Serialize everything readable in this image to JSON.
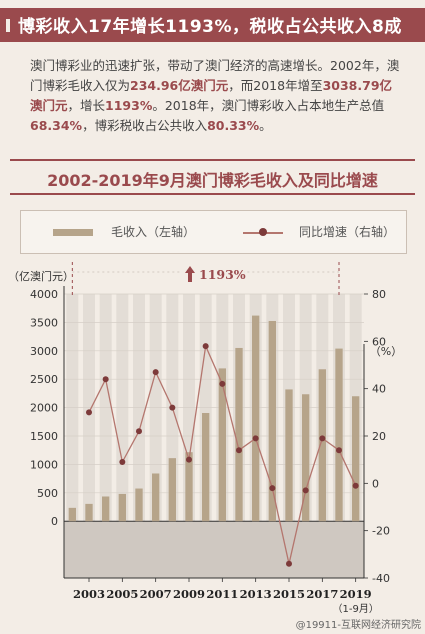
{
  "header": {
    "title": "博彩收入17年增长1193%，税收占公共收入8成"
  },
  "lead": {
    "p1": "澳门博彩业的迅速扩张，带动了澳门经济的高速增长。2002年，澳门博彩毛收入仅为",
    "v1": "234.96亿澳门元",
    "p2": "，而2018年增至",
    "v2": "3038.79亿澳门元",
    "p3": "，增长",
    "v3": "1193%",
    "p4": "。2018年，澳门博彩收入占本地生产总值",
    "v4": "68.34%",
    "p5": "，博彩税收占公共收入",
    "v5": "80.33%",
    "p6": "。"
  },
  "chart_title": "2002-2019年9月澳门博彩毛收入及同比增速",
  "legend": {
    "bar": "毛收入（左轴）",
    "line": "同比增速（右轴）"
  },
  "watermark": "@19911-互联网经济研究院",
  "colors": {
    "accent": "#9a4a4d",
    "bar": "#b6a48a",
    "line": "#b4766e",
    "dot": "#7d3a3a"
  },
  "chart_data": {
    "type": "bar",
    "x": [
      "2002",
      "2003",
      "2004",
      "2005",
      "2006",
      "2007",
      "2008",
      "2009",
      "2010",
      "2011",
      "2012",
      "2013",
      "2014",
      "2015",
      "2016",
      "2017",
      "2018",
      "2019"
    ],
    "x_tick_labels": [
      "2003",
      "2005",
      "2007",
      "2009",
      "2011",
      "2013",
      "2015",
      "2017",
      "2019"
    ],
    "x_sub_label": "（1-9月）",
    "series": [
      {
        "name": "毛收入（左轴）",
        "axis": "left",
        "type": "bar",
        "values": [
          235,
          305,
          435,
          480,
          575,
          840,
          1110,
          1215,
          1905,
          2690,
          3050,
          3620,
          3525,
          2320,
          2235,
          2675,
          3039,
          2200
        ]
      },
      {
        "name": "同比增速（右轴）",
        "axis": "right",
        "type": "line",
        "values": [
          null,
          30,
          44,
          9,
          22,
          47,
          32,
          10,
          58,
          42,
          14,
          19,
          -2,
          -34,
          -3,
          19,
          14,
          -1
        ]
      }
    ],
    "y_left": {
      "label": "（亿澳门元）",
      "ylim": [
        -1000,
        4000
      ],
      "ticks": [
        0,
        500,
        1000,
        1500,
        2000,
        2500,
        3000,
        3500,
        4000
      ]
    },
    "y_right": {
      "label": "（%）",
      "ylim": [
        -40,
        80
      ],
      "ticks": [
        -40,
        -20,
        0,
        20,
        40,
        60,
        80
      ]
    },
    "annotation": "1193%",
    "highlight": [
      "2002",
      "2018"
    ]
  }
}
